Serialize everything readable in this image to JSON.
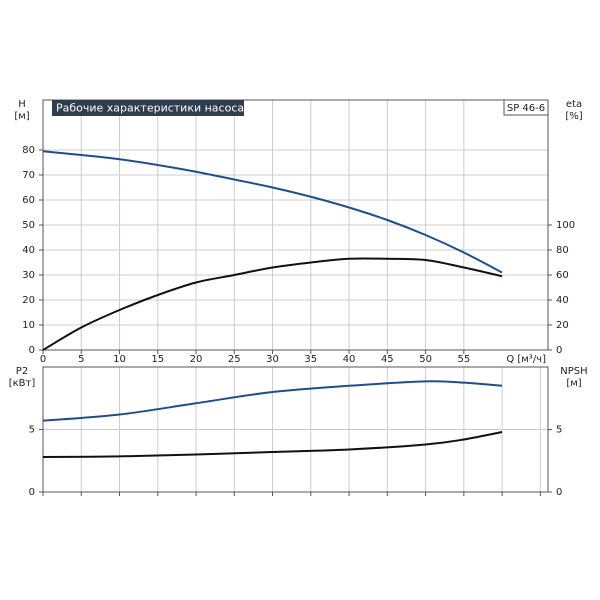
{
  "chart_data": [
    {
      "type": "line",
      "title": "Рабочие характеристики насоса",
      "legend": "SP 46-6",
      "ylabel": "H",
      "yunit": "[м]",
      "y2label": "eta",
      "y2unit": "[%]",
      "xlabel": "Q [м³/ч]",
      "x": [
        0,
        5,
        10,
        15,
        20,
        25,
        30,
        35,
        40,
        45,
        50,
        55,
        60
      ],
      "xlim": [
        0,
        66
      ],
      "xticks": [
        0,
        5,
        10,
        15,
        20,
        25,
        30,
        35,
        40,
        45,
        50,
        55
      ],
      "ylim": [
        0,
        100
      ],
      "yticks": [
        0,
        10,
        20,
        30,
        40,
        50,
        60,
        70,
        80
      ],
      "y2lim": [
        0,
        200
      ],
      "y2ticks": [
        0,
        20,
        40,
        60,
        80,
        100
      ],
      "grid": true,
      "series": [
        {
          "color": "#1f4e8c",
          "values": [
            79.5,
            78,
            76.3,
            74,
            71.3,
            68.2,
            65,
            61.3,
            57,
            52,
            46,
            39,
            31
          ]
        },
        {
          "color": "#111111",
          "axis": "y2",
          "values": [
            0,
            18,
            32,
            44,
            54,
            60,
            66,
            70,
            73,
            73,
            72,
            66,
            59
          ]
        }
      ]
    },
    {
      "type": "line",
      "ylabel": "P2",
      "yunit": "[кВт]",
      "y2label": "NPSH",
      "y2unit": "[м]",
      "x": [
        0,
        10,
        20,
        30,
        40,
        50,
        55,
        60
      ],
      "xlim": [
        0,
        66
      ],
      "xticks": [
        0,
        5,
        10,
        15,
        20,
        25,
        30,
        35,
        40,
        45,
        50,
        55,
        60,
        65
      ],
      "ylim": [
        0,
        10
      ],
      "yticks": [
        0,
        5
      ],
      "y2lim": [
        0,
        10
      ],
      "y2ticks": [
        0,
        5
      ],
      "grid": true,
      "series": [
        {
          "color": "#1f4e8c",
          "values": [
            5.7,
            6.2,
            7.1,
            8.0,
            8.5,
            8.85,
            8.75,
            8.5
          ]
        },
        {
          "color": "#111111",
          "axis": "y2",
          "values": [
            2.8,
            2.85,
            3.0,
            3.2,
            3.4,
            3.8,
            4.2,
            4.8
          ]
        }
      ]
    }
  ]
}
